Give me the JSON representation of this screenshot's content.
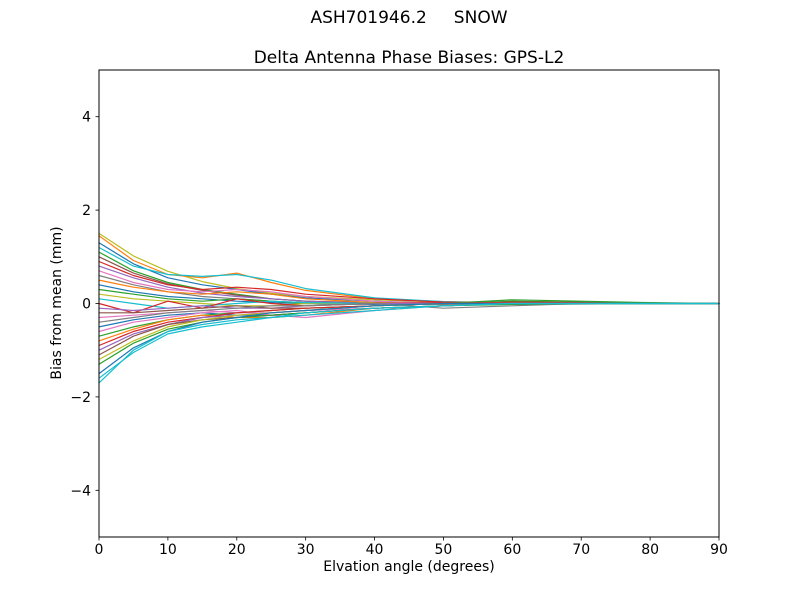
{
  "chart_data": {
    "type": "line",
    "title": "ASH701946.2     SNOW",
    "subtitle": "Delta Antenna Phase Biases: GPS-L2",
    "xlabel": "Elvation angle (degrees)",
    "ylabel": "Bias from mean (mm)",
    "xlim": [
      0,
      90
    ],
    "ylim": [
      -5,
      5
    ],
    "grid": false,
    "legend_position": "none",
    "xtick_values": [
      0,
      10,
      20,
      30,
      40,
      50,
      60,
      70,
      80,
      90
    ],
    "xtick_labels": [
      "0",
      "10",
      "20",
      "30",
      "40",
      "50",
      "60",
      "70",
      "80",
      "90"
    ],
    "ytick_values": [
      -4,
      -2,
      0,
      2,
      4
    ],
    "ytick_labels": [
      "−4",
      "−2",
      "0",
      "2",
      "4"
    ],
    "x": [
      0,
      5,
      10,
      15,
      20,
      25,
      30,
      40,
      50,
      60,
      70,
      80,
      90
    ],
    "series": [
      {
        "color": "#bcbd22",
        "values": [
          1.5,
          1.02,
          0.69,
          0.47,
          0.32,
          0.22,
          0.15,
          0.08,
          0.03,
          0.02,
          0.01,
          0.01,
          0.0
        ]
      },
      {
        "color": "#ff7f0e",
        "values": [
          1.45,
          0.92,
          0.62,
          0.55,
          0.65,
          0.45,
          0.28,
          0.1,
          0.04,
          0.02,
          0.01,
          0.0,
          0.0
        ]
      },
      {
        "color": "#1f77b4",
        "values": [
          1.3,
          0.85,
          0.55,
          0.4,
          0.3,
          0.2,
          0.12,
          0.05,
          0.0,
          -0.02,
          -0.01,
          0.0,
          0.0
        ]
      },
      {
        "color": "#17becf",
        "values": [
          1.2,
          0.8,
          0.62,
          0.58,
          0.62,
          0.5,
          0.32,
          0.12,
          0.04,
          0.0,
          0.0,
          0.0,
          0.0
        ]
      },
      {
        "color": "#2ca02c",
        "values": [
          1.1,
          0.7,
          0.45,
          0.3,
          0.2,
          0.1,
          0.05,
          0.0,
          -0.02,
          0.05,
          0.03,
          0.01,
          0.0
        ]
      },
      {
        "color": "#8c564b",
        "values": [
          1.0,
          0.65,
          0.42,
          0.28,
          0.18,
          0.1,
          0.05,
          0.02,
          0.0,
          0.0,
          0.0,
          0.0,
          0.0
        ]
      },
      {
        "color": "#d62728",
        "values": [
          0.9,
          0.6,
          0.4,
          0.3,
          0.35,
          0.3,
          0.2,
          0.1,
          0.03,
          0.0,
          0.0,
          0.0,
          0.0
        ]
      },
      {
        "color": "#9467bd",
        "values": [
          0.8,
          0.55,
          0.35,
          0.22,
          0.15,
          0.1,
          0.05,
          0.0,
          0.0,
          0.0,
          0.0,
          0.0,
          0.0
        ]
      },
      {
        "color": "#e377c2",
        "values": [
          0.7,
          0.45,
          0.3,
          0.25,
          0.3,
          0.25,
          0.15,
          0.05,
          0.0,
          0.0,
          0.0,
          0.0,
          0.0
        ]
      },
      {
        "color": "#7f7f7f",
        "values": [
          0.6,
          0.4,
          0.25,
          0.15,
          0.1,
          0.05,
          0.02,
          0.0,
          -0.02,
          0.0,
          0.0,
          0.0,
          0.0
        ]
      },
      {
        "color": "#ff7f0e",
        "values": [
          0.5,
          0.35,
          0.25,
          0.2,
          0.25,
          0.2,
          0.1,
          0.02,
          0.0,
          0.0,
          0.0,
          0.0,
          0.0
        ]
      },
      {
        "color": "#1f77b4",
        "values": [
          0.4,
          0.25,
          0.15,
          0.1,
          0.05,
          0.02,
          0.0,
          -0.02,
          0.0,
          0.0,
          0.0,
          0.0,
          0.0
        ]
      },
      {
        "color": "#2ca02c",
        "values": [
          0.3,
          0.2,
          0.1,
          0.05,
          0.1,
          0.05,
          0.0,
          0.0,
          0.0,
          0.0,
          0.0,
          0.0,
          0.0
        ]
      },
      {
        "color": "#bcbd22",
        "values": [
          0.2,
          0.1,
          0.05,
          0.0,
          -0.05,
          -0.05,
          0.0,
          0.0,
          0.0,
          0.0,
          0.0,
          0.0,
          0.0
        ]
      },
      {
        "color": "#17becf",
        "values": [
          0.1,
          0.0,
          -0.1,
          -0.05,
          0.0,
          0.05,
          0.02,
          0.0,
          0.0,
          0.0,
          0.0,
          0.0,
          0.0
        ]
      },
      {
        "color": "#d62728",
        "values": [
          0.0,
          -0.2,
          0.05,
          -0.1,
          0.1,
          0.0,
          -0.05,
          0.0,
          0.02,
          0.0,
          0.0,
          0.0,
          0.0
        ]
      },
      {
        "color": "#9467bd",
        "values": [
          -0.1,
          -0.15,
          -0.1,
          -0.05,
          -0.1,
          -0.1,
          -0.05,
          0.0,
          0.0,
          0.0,
          0.0,
          0.0,
          0.0
        ]
      },
      {
        "color": "#8c564b",
        "values": [
          -0.2,
          -0.2,
          -0.15,
          -0.1,
          -0.05,
          -0.1,
          -0.1,
          -0.05,
          0.0,
          0.0,
          0.0,
          0.0,
          0.0
        ]
      },
      {
        "color": "#e377c2",
        "values": [
          -0.3,
          -0.25,
          -0.2,
          -0.15,
          -0.2,
          -0.2,
          -0.15,
          -0.1,
          -0.05,
          0.0,
          0.0,
          0.0,
          0.0
        ]
      },
      {
        "color": "#7f7f7f",
        "values": [
          -0.4,
          -0.3,
          -0.2,
          -0.15,
          -0.1,
          -0.05,
          -0.05,
          0.0,
          -0.1,
          -0.05,
          0.0,
          0.0,
          0.0
        ]
      },
      {
        "color": "#1f77b4",
        "values": [
          -0.5,
          -0.35,
          -0.25,
          -0.2,
          -0.25,
          -0.25,
          -0.2,
          -0.1,
          -0.05,
          0.0,
          0.0,
          0.0,
          0.0
        ]
      },
      {
        "color": "#e377c2",
        "values": [
          -0.6,
          -0.4,
          -0.3,
          -0.2,
          -0.15,
          -0.25,
          -0.3,
          -0.15,
          -0.05,
          0.0,
          0.0,
          0.0,
          0.0
        ]
      },
      {
        "color": "#2ca02c",
        "values": [
          -0.7,
          -0.5,
          -0.35,
          -0.25,
          -0.2,
          -0.15,
          -0.1,
          -0.05,
          0.0,
          0.08,
          0.05,
          0.02,
          0.0
        ]
      },
      {
        "color": "#ff7f0e",
        "values": [
          -0.8,
          -0.55,
          -0.35,
          -0.25,
          -0.3,
          -0.3,
          -0.25,
          -0.1,
          -0.05,
          0.0,
          0.0,
          0.0,
          0.0
        ]
      },
      {
        "color": "#d62728",
        "values": [
          -0.9,
          -0.6,
          -0.4,
          -0.3,
          -0.2,
          -0.15,
          -0.1,
          -0.05,
          0.0,
          0.03,
          0.02,
          0.0,
          0.0
        ]
      },
      {
        "color": "#9467bd",
        "values": [
          -1.0,
          -0.65,
          -0.45,
          -0.3,
          -0.25,
          -0.2,
          -0.15,
          -0.05,
          0.0,
          0.0,
          0.0,
          0.0,
          0.0
        ]
      },
      {
        "color": "#8c564b",
        "values": [
          -1.1,
          -0.7,
          -0.45,
          -0.35,
          -0.3,
          -0.25,
          -0.2,
          -0.1,
          -0.05,
          0.0,
          0.0,
          0.0,
          0.0
        ]
      },
      {
        "color": "#bcbd22",
        "values": [
          -1.2,
          -0.8,
          -0.5,
          -0.35,
          -0.25,
          -0.2,
          -0.15,
          -0.05,
          0.0,
          0.0,
          0.0,
          0.0,
          0.0
        ]
      },
      {
        "color": "#2ca02c",
        "values": [
          -1.3,
          -0.85,
          -0.55,
          -0.4,
          -0.3,
          -0.25,
          -0.2,
          -0.1,
          -0.05,
          -0.02,
          0.0,
          0.0,
          0.0
        ]
      },
      {
        "color": "#1f77b4",
        "values": [
          -1.5,
          -0.95,
          -0.6,
          -0.4,
          -0.3,
          -0.2,
          -0.15,
          -0.05,
          0.0,
          0.0,
          0.0,
          0.0,
          0.0
        ]
      },
      {
        "color": "#17becf",
        "values": [
          -1.6,
          -1.05,
          -0.65,
          -0.5,
          -0.4,
          -0.3,
          -0.25,
          -0.15,
          -0.05,
          0.0,
          0.0,
          0.0,
          0.0
        ]
      },
      {
        "color": "#17becf",
        "values": [
          -1.7,
          -1.0,
          -0.6,
          -0.45,
          -0.35,
          -0.3,
          -0.2,
          -0.1,
          -0.05,
          0.0,
          0.0,
          0.0,
          0.0
        ]
      }
    ]
  }
}
